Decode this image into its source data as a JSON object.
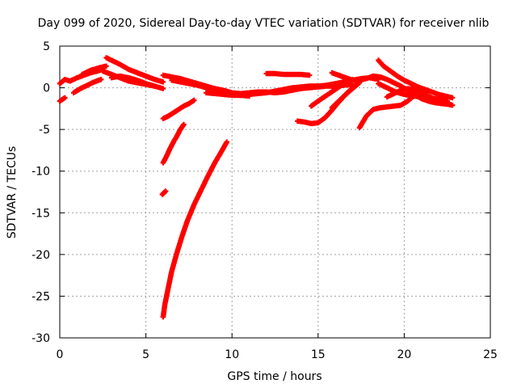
{
  "chart_data": {
    "type": "scatter",
    "title": "Day 099 of 2020, Sidereal Day-to-day VTEC variation (SDTVAR) for receiver nlib",
    "xlabel": "GPS time / hours",
    "ylabel": "SDTVAR / TECUs",
    "xlim": [
      0,
      25
    ],
    "ylim": [
      -30,
      5
    ],
    "xticks": [
      "0",
      "5",
      "10",
      "15",
      "20",
      "25"
    ],
    "yticks": [
      "5",
      "0",
      "-5",
      "-10",
      "-15",
      "-20",
      "-25",
      "-30"
    ],
    "grid": true,
    "legend": "none",
    "marker": "+",
    "color": "#ff0000",
    "segments": [
      {
        "x": [
          0.0,
          0.3,
          0.6,
          1.0,
          1.4,
          1.8,
          2.2,
          2.5
        ],
        "y": [
          0.5,
          1.0,
          0.8,
          1.2,
          1.5,
          1.8,
          2.0,
          2.2
        ]
      },
      {
        "x": [
          0.0,
          0.15,
          0.3
        ],
        "y": [
          -1.6,
          -1.4,
          -1.2
        ]
      },
      {
        "x": [
          0.8,
          1.2,
          1.6,
          2.0,
          2.4
        ],
        "y": [
          -0.6,
          -0.1,
          0.3,
          0.7,
          1.0
        ]
      },
      {
        "x": [
          1.3,
          1.8,
          2.3,
          2.7
        ],
        "y": [
          1.6,
          2.1,
          2.4,
          2.6
        ]
      },
      {
        "x": [
          2.7,
          3.1,
          3.5,
          4.0,
          4.5,
          5.0,
          5.5,
          6.0
        ],
        "y": [
          3.6,
          3.2,
          2.8,
          2.2,
          1.8,
          1.4,
          1.0,
          0.7
        ]
      },
      {
        "x": [
          2.5,
          3.0,
          3.5,
          4.0,
          4.5,
          5.0,
          5.5
        ],
        "y": [
          2.0,
          1.6,
          1.2,
          0.8,
          0.6,
          0.4,
          0.2
        ]
      },
      {
        "x": [
          3.0,
          3.5,
          4.0,
          4.5,
          5.0,
          5.5,
          6.0
        ],
        "y": [
          1.2,
          1.4,
          1.2,
          0.9,
          0.5,
          0.2,
          -0.1
        ]
      },
      {
        "x": [
          6.0,
          6.5,
          7.0,
          7.5,
          8.0,
          8.5,
          9.0,
          9.5,
          10.0,
          10.5,
          11.0,
          11.5,
          12.0,
          12.5,
          13.0,
          13.5,
          14.0,
          14.5,
          15.0,
          15.5,
          16.0,
          16.5,
          17.0
        ],
        "y": [
          1.5,
          1.3,
          1.1,
          0.8,
          0.5,
          0.2,
          -0.1,
          -0.3,
          -0.6,
          -0.7,
          -0.6,
          -0.5,
          -0.5,
          -0.6,
          -0.5,
          -0.3,
          -0.1,
          0.0,
          0.1,
          0.2,
          0.2,
          0.3,
          0.4
        ]
      },
      {
        "x": [
          6.5,
          7.0,
          7.5,
          8.0,
          8.5,
          9.0,
          9.5,
          10.0,
          10.5,
          11.0
        ],
        "y": [
          0.9,
          0.7,
          0.5,
          0.3,
          0.0,
          -0.3,
          -0.5,
          -0.7,
          -0.9,
          -1.0
        ]
      },
      {
        "x": [
          8.5,
          9.0,
          9.5,
          10.0,
          10.5,
          11.0,
          11.5,
          12.0,
          12.5,
          13.0,
          13.5,
          14.0,
          14.5,
          15.0,
          15.5,
          16.0,
          16.5,
          17.0,
          17.5,
          18.0,
          18.5
        ],
        "y": [
          -0.6,
          -0.7,
          -0.8,
          -0.9,
          -0.9,
          -0.8,
          -0.7,
          -0.6,
          -0.4,
          -0.2,
          0.0,
          0.1,
          0.2,
          0.2,
          0.3,
          0.5,
          0.7,
          0.9,
          1.1,
          1.2,
          1.0
        ]
      },
      {
        "x": [
          12.0,
          12.5,
          13.0,
          13.5,
          14.0,
          14.5
        ],
        "y": [
          1.7,
          1.7,
          1.6,
          1.6,
          1.6,
          1.5
        ]
      },
      {
        "x": [
          6.0,
          6.3,
          6.6,
          6.9,
          7.2,
          7.5,
          7.8
        ],
        "y": [
          -3.7,
          -3.4,
          -3.0,
          -2.6,
          -2.2,
          -1.9,
          -1.5
        ]
      },
      {
        "x": [
          6.0,
          6.2,
          6.4,
          6.6,
          6.8,
          7.0,
          7.2
        ],
        "y": [
          -9.0,
          -8.2,
          -7.3,
          -6.5,
          -5.8,
          -5.0,
          -4.4
        ]
      },
      {
        "x": [
          5.95,
          6.05,
          6.15
        ],
        "y": [
          -12.8,
          -12.6,
          -12.4
        ]
      },
      {
        "x": [
          6.0,
          6.1,
          6.3,
          6.5,
          6.8,
          7.1,
          7.4,
          7.8,
          8.2,
          8.6,
          9.0,
          9.4,
          9.7
        ],
        "y": [
          -27.5,
          -26.0,
          -24.0,
          -22.0,
          -19.8,
          -17.8,
          -16.0,
          -14.0,
          -12.3,
          -10.6,
          -9.0,
          -7.6,
          -6.5
        ]
      },
      {
        "x": [
          13.8,
          14.2,
          14.6,
          15.0,
          15.4,
          15.8,
          16.2,
          16.6,
          17.0,
          17.4
        ],
        "y": [
          -4.0,
          -4.1,
          -4.3,
          -4.2,
          -3.6,
          -2.7,
          -1.7,
          -0.8,
          0.0,
          0.8
        ]
      },
      {
        "x": [
          14.6,
          15.0,
          15.5,
          16.0,
          16.5,
          17.0
        ],
        "y": [
          -2.2,
          -1.6,
          -0.9,
          -0.2,
          0.5,
          1.0
        ]
      },
      {
        "x": [
          15.8,
          16.2,
          16.6,
          17.0,
          17.4
        ],
        "y": [
          -2.4,
          -1.6,
          -0.8,
          -0.1,
          0.6
        ]
      },
      {
        "x": [
          15.8,
          16.2,
          16.6,
          17.0,
          17.4,
          17.8,
          18.2,
          18.6,
          19.0,
          19.4,
          19.8,
          20.2,
          20.6,
          21.0,
          21.4,
          21.8,
          22.2,
          22.6,
          22.8
        ],
        "y": [
          1.8,
          1.5,
          1.2,
          0.9,
          0.9,
          1.1,
          1.4,
          1.3,
          1.0,
          0.6,
          0.2,
          -0.3,
          -0.8,
          -1.3,
          -1.6,
          -1.8,
          -1.9,
          -2.0,
          -2.1
        ]
      },
      {
        "x": [
          17.4,
          17.8,
          18.2,
          18.6,
          19.0,
          19.4,
          19.8,
          20.2,
          20.6
        ],
        "y": [
          -4.8,
          -3.4,
          -2.6,
          -2.4,
          -2.3,
          -2.2,
          -2.1,
          -1.6,
          -0.9
        ]
      },
      {
        "x": [
          18.5,
          18.8,
          19.2,
          19.6,
          20.0,
          20.4,
          20.8,
          21.2,
          21.6,
          22.0,
          22.4,
          22.8
        ],
        "y": [
          3.3,
          2.6,
          2.0,
          1.4,
          0.9,
          0.5,
          0.1,
          -0.2,
          -0.5,
          -0.8,
          -1.0,
          -1.2
        ]
      },
      {
        "x": [
          18.5,
          19.0,
          19.5,
          20.0,
          20.5,
          21.0,
          21.5,
          22.0,
          22.5
        ],
        "y": [
          0.5,
          0.0,
          -0.5,
          -0.8,
          -1.0,
          -1.1,
          -1.2,
          -1.4,
          -1.6
        ]
      },
      {
        "x": [
          19.0,
          19.4,
          19.8,
          20.2,
          20.6,
          21.0,
          21.4,
          21.8,
          22.2,
          22.6
        ],
        "y": [
          -1.1,
          -0.7,
          -0.3,
          -0.1,
          -0.2,
          -0.6,
          -1.0,
          -1.4,
          -1.7,
          -1.8
        ]
      }
    ]
  }
}
